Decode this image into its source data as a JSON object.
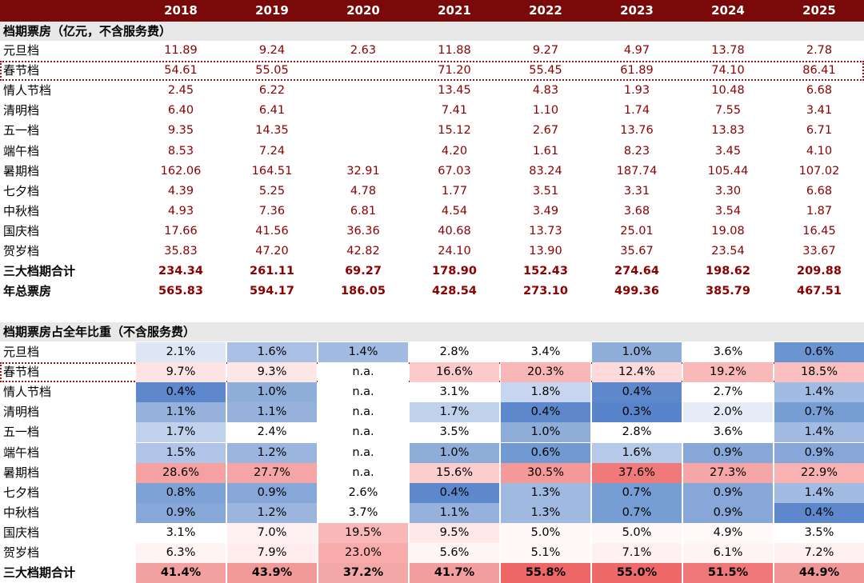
{
  "years": [
    "2018",
    "2019",
    "2020",
    "2021",
    "2022",
    "2023",
    "2024",
    "2025"
  ],
  "colors": {
    "header_bg": "#7a0a0a",
    "value_text": "#8b0000",
    "high": "#f07a7a",
    "low": "#5b87c9"
  },
  "section1_title": "档期票房（亿元，不含服务费）",
  "section2_title": "档期票房占全年比重（不含服务费）",
  "chart_data": [
    {
      "type": "table",
      "title": "档期票房（亿元，不含服务费）",
      "columns": [
        "2018",
        "2019",
        "2020",
        "2021",
        "2022",
        "2023",
        "2024",
        "2025"
      ],
      "rows": [
        {
          "label": "元旦档",
          "values": [
            "11.89",
            "9.24",
            "2.63",
            "11.88",
            "9.27",
            "4.97",
            "13.78",
            "2.78"
          ]
        },
        {
          "label": "春节档",
          "values": [
            "54.61",
            "55.05",
            "",
            "71.20",
            "55.45",
            "61.89",
            "74.10",
            "86.41"
          ],
          "highlight": true
        },
        {
          "label": "情人节档",
          "values": [
            "2.45",
            "6.22",
            "",
            "13.45",
            "4.83",
            "1.93",
            "10.48",
            "6.68"
          ]
        },
        {
          "label": "清明档",
          "values": [
            "6.40",
            "6.41",
            "",
            "7.41",
            "1.10",
            "1.74",
            "7.55",
            "3.41"
          ]
        },
        {
          "label": "五一档",
          "values": [
            "9.35",
            "14.35",
            "",
            "15.12",
            "2.67",
            "13.76",
            "13.83",
            "6.71"
          ]
        },
        {
          "label": "端午档",
          "values": [
            "8.53",
            "7.24",
            "",
            "4.20",
            "1.61",
            "8.23",
            "3.45",
            "4.10"
          ]
        },
        {
          "label": "暑期档",
          "values": [
            "162.06",
            "164.51",
            "32.91",
            "67.03",
            "83.24",
            "187.74",
            "105.44",
            "107.02"
          ]
        },
        {
          "label": "七夕档",
          "values": [
            "4.39",
            "5.25",
            "4.78",
            "1.77",
            "3.51",
            "3.31",
            "3.30",
            "6.68"
          ]
        },
        {
          "label": "中秋档",
          "values": [
            "4.93",
            "7.36",
            "6.81",
            "4.54",
            "3.49",
            "3.68",
            "3.54",
            "1.87"
          ]
        },
        {
          "label": "国庆档",
          "values": [
            "17.66",
            "41.56",
            "36.36",
            "40.68",
            "13.73",
            "25.01",
            "19.08",
            "16.45"
          ]
        },
        {
          "label": "贺岁档",
          "values": [
            "35.83",
            "47.20",
            "42.82",
            "24.10",
            "13.90",
            "35.67",
            "23.54",
            "33.67"
          ]
        },
        {
          "label": "三大档期合计",
          "values": [
            "234.34",
            "261.11",
            "69.27",
            "178.90",
            "152.43",
            "274.64",
            "198.62",
            "209.88"
          ],
          "bold": true
        },
        {
          "label": "年总票房",
          "values": [
            "565.83",
            "594.17",
            "186.05",
            "428.54",
            "273.10",
            "499.36",
            "385.79",
            "467.51"
          ],
          "bold": true
        }
      ]
    },
    {
      "type": "heatmap",
      "title": "档期票房占全年比重（不含服务费）",
      "columns": [
        "2018",
        "2019",
        "2020",
        "2021",
        "2022",
        "2023",
        "2024",
        "2025"
      ],
      "rows": [
        {
          "label": "元旦档",
          "values": [
            "2.1%",
            "1.6%",
            "1.4%",
            "2.8%",
            "3.4%",
            "1.0%",
            "3.6%",
            "0.6%"
          ],
          "colors": [
            "#dde6f4",
            "#a9c0e4",
            "#a2bbe2",
            "#ffffff",
            "#ffffff",
            "#8fadd9",
            "#ffffff",
            "#6b95d1"
          ]
        },
        {
          "label": "春节档",
          "values": [
            "9.7%",
            "9.3%",
            "n.a.",
            "16.6%",
            "20.3%",
            "12.4%",
            "19.2%",
            "18.5%"
          ],
          "colors": [
            "#fde4e4",
            "#fde6e6",
            "#ffffff",
            "#fccaca",
            "#f9b6b6",
            "#fdd9d9",
            "#fab9b9",
            "#fbbfbf"
          ],
          "highlight": true
        },
        {
          "label": "情人节档",
          "values": [
            "0.4%",
            "1.0%",
            "n.a.",
            "3.1%",
            "1.8%",
            "0.4%",
            "2.7%",
            "1.4%"
          ],
          "colors": [
            "#5d89cc",
            "#8fadd9",
            "#ffffff",
            "#ffffff",
            "#c7d6ee",
            "#5d89cc",
            "#ffffff",
            "#a2bbe2"
          ]
        },
        {
          "label": "清明档",
          "values": [
            "1.1%",
            "1.1%",
            "n.a.",
            "1.7%",
            "0.4%",
            "0.3%",
            "2.0%",
            "0.7%"
          ],
          "colors": [
            "#96b2dc",
            "#96b2dc",
            "#ffffff",
            "#c0d1ec",
            "#5d89cc",
            "#5784ca",
            "#e5ecf7",
            "#769dd4"
          ]
        },
        {
          "label": "五一档",
          "values": [
            "1.7%",
            "2.4%",
            "n.a.",
            "3.5%",
            "1.0%",
            "2.8%",
            "3.6%",
            "1.4%"
          ],
          "colors": [
            "#c0d1ec",
            "#ffffff",
            "#ffffff",
            "#ffffff",
            "#8fadd9",
            "#ffffff",
            "#ffffff",
            "#a2bbe2"
          ]
        },
        {
          "label": "端午档",
          "values": [
            "1.5%",
            "1.2%",
            "n.a.",
            "1.0%",
            "0.6%",
            "1.6%",
            "0.9%",
            "0.9%"
          ],
          "colors": [
            "#afc4e6",
            "#9bb5de",
            "#ffffff",
            "#8fadd9",
            "#7199d2",
            "#b6c9e8",
            "#86a7d8",
            "#86a7d8"
          ]
        },
        {
          "label": "暑期档",
          "values": [
            "28.6%",
            "27.7%",
            "n.a.",
            "15.6%",
            "30.5%",
            "37.6%",
            "27.3%",
            "22.9%"
          ],
          "colors": [
            "#f5a1a1",
            "#f5a5a5",
            "#ffffff",
            "#fccdcd",
            "#f49898",
            "#f07a7a",
            "#f6a6a6",
            "#f8b2b2"
          ]
        },
        {
          "label": "七夕档",
          "values": [
            "0.8%",
            "0.9%",
            "2.6%",
            "0.4%",
            "1.3%",
            "0.7%",
            "0.9%",
            "1.4%"
          ],
          "colors": [
            "#7fa2d6",
            "#86a7d8",
            "#ffffff",
            "#5d89cc",
            "#a0b9e1",
            "#769dd4",
            "#86a7d8",
            "#a2bbe2"
          ]
        },
        {
          "label": "中秋档",
          "values": [
            "0.9%",
            "1.2%",
            "3.7%",
            "1.1%",
            "1.3%",
            "0.7%",
            "0.9%",
            "0.4%"
          ],
          "colors": [
            "#86a7d8",
            "#9bb5de",
            "#ffffff",
            "#96b2dc",
            "#a0b9e1",
            "#769dd4",
            "#86a7d8",
            "#5d89cc"
          ]
        },
        {
          "label": "国庆档",
          "values": [
            "3.1%",
            "7.0%",
            "19.5%",
            "9.5%",
            "5.0%",
            "5.0%",
            "4.9%",
            "3.5%"
          ],
          "colors": [
            "#ffffff",
            "#fff1f1",
            "#f9b7b7",
            "#fee7e7",
            "#fff8f8",
            "#fff8f8",
            "#fff9f9",
            "#ffffff"
          ]
        },
        {
          "label": "贺岁档",
          "values": [
            "6.3%",
            "7.9%",
            "23.0%",
            "5.6%",
            "5.1%",
            "7.1%",
            "6.1%",
            "7.2%"
          ],
          "colors": [
            "#fff3f3",
            "#ffeded",
            "#f8acac",
            "#fff6f6",
            "#fff8f8",
            "#fff1f1",
            "#fff4f4",
            "#fff1f1"
          ]
        },
        {
          "label": "三大档期合计",
          "values": [
            "41.4%",
            "43.9%",
            "37.2%",
            "41.7%",
            "55.8%",
            "55.0%",
            "51.5%",
            "44.9%"
          ],
          "colors": [
            "#f2a0a0",
            "#f19a9a",
            "#f3a8a8",
            "#f29e9e",
            "#ee6767",
            "#ee6a6a",
            "#ef7777",
            "#f19696"
          ],
          "bold": true
        }
      ]
    }
  ]
}
